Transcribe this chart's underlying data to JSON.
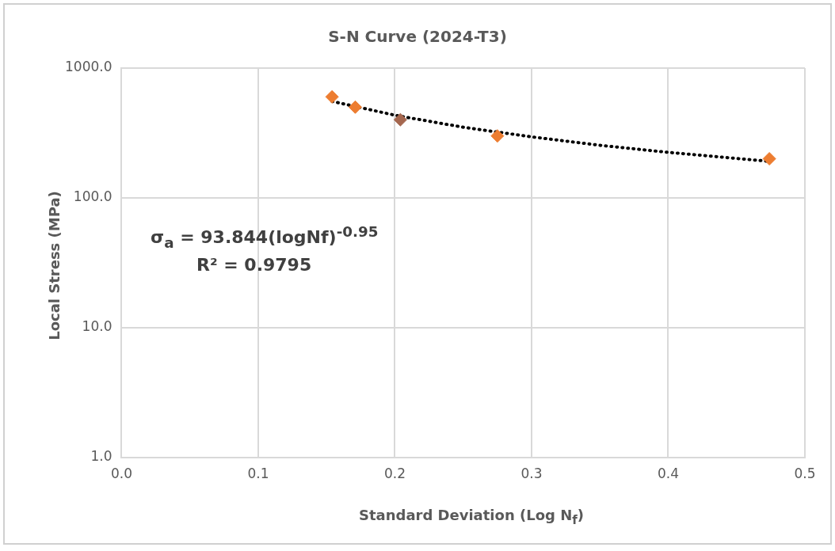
{
  "chart_data": {
    "type": "scatter",
    "title": "S-N Curve (2024-T3)",
    "xlabel": "Standard Deviation (Log N$_{f}$)",
    "ylabel": "Local Stress (MPa)",
    "annotations": [
      "σ$_{a}$ = 93.844(logNf)$^{-0.95}$",
      "R² = 0.9795"
    ],
    "log": "y",
    "grid": true,
    "legend": false,
    "marker": "diamond",
    "xlim": [
      0,
      0.5
    ],
    "xticks": [
      {
        "value": 0,
        "label": "0.0"
      },
      {
        "value": 0.1,
        "label": "0.1"
      },
      {
        "value": 0.2,
        "label": "0.2"
      },
      {
        "value": 0.3,
        "label": "0.3"
      },
      {
        "value": 0.4,
        "label": "0.4"
      },
      {
        "value": 0.5,
        "label": "0.5"
      }
    ],
    "ylim": [
      1,
      1000
    ],
    "yticks": [
      {
        "value": 1,
        "label": "1.0"
      },
      {
        "value": 10,
        "label": "10.0"
      },
      {
        "value": 100,
        "label": "100.0"
      },
      {
        "value": 1000,
        "label": "1000.0"
      }
    ],
    "series": [
      {
        "color": "#ed7d31",
        "colors": [
          "#ed7d31",
          "#ed7d31",
          "#a5674f",
          "#ed7d31",
          "#ed7d31"
        ],
        "x": [
          0.154,
          0.171,
          0.204,
          0.275,
          0.474
        ],
        "values": [
          600,
          500,
          400,
          300,
          200
        ]
      },
      {
        "type": "line",
        "color": "#000000",
        "marker": "none",
        "line_style": "dotted",
        "x": [
          0.154,
          0.2,
          0.25,
          0.3,
          0.35,
          0.4,
          0.474
        ],
        "values": [
          554,
          433,
          350,
          295,
          254,
          224,
          191
        ]
      }
    ]
  }
}
